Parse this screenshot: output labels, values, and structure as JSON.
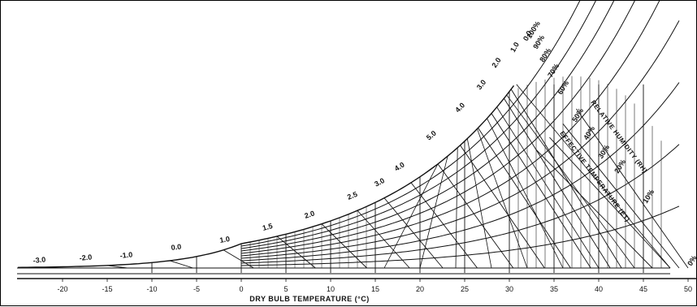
{
  "chart_data": {
    "type": "line",
    "title": "",
    "xlabel": "DRY BULB TEMPERATURE (°C)",
    "ylabel": "",
    "xlim": [
      -25,
      50
    ],
    "x_ticks": [
      -20,
      -15,
      -10,
      -5,
      0,
      5,
      10,
      15,
      20,
      25,
      30,
      35,
      40,
      45,
      50
    ],
    "x_tick_labels": [
      "-20",
      "-15",
      "-10",
      "-5",
      "0",
      "5",
      "10",
      "15",
      "20",
      "25",
      "30",
      "35",
      "40",
      "45",
      "50"
    ],
    "rh_series_percent": [
      100,
      90,
      80,
      70,
      60,
      50,
      40,
      30,
      20,
      10
    ],
    "rh_labels": [
      "100%",
      "90%",
      "80%",
      "70%",
      "60%",
      "50%",
      "40%",
      "30%",
      "20%",
      "10%",
      "0%"
    ],
    "vapour_curve_labels": [
      "-3.0",
      "-2.0",
      "-1.0",
      "0.0",
      "1.0",
      "1.5",
      "2.0",
      "2.5",
      "3.0",
      "4.0",
      "5.0",
      "4.0",
      "3.0",
      "2.0",
      "1.0",
      "0.0"
    ],
    "annotations": {
      "relative_humidity": "RELATIVE HUMIDITY (RH)",
      "effective_temperature": "EFFECTIVE TEMPERATURE (ET)"
    },
    "grid": false,
    "legend": "none"
  }
}
